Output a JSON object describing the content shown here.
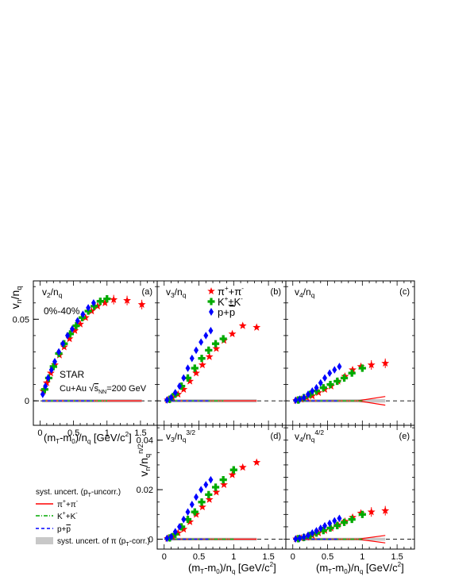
{
  "figure": {
    "y_axis_label_top": "v_n/n_q",
    "y_axis_label_bottom": "v_n/n_q^{n/2}",
    "x_axis_label_top": "(m_T-m_0)/n_q [GeV/c^2]",
    "x_axis_label_bottom": "(m_T-m_0)/n_q [GeV/c^2]",
    "centrality": "0%-40%",
    "experiment": "STAR",
    "system": "Cu+Au √s_NN=200 GeV",
    "legend_particles": [
      "π⁺+π⁻",
      "K⁺+K⁻",
      "p+p̄"
    ],
    "syst_legend": {
      "title": "syst. uncert. (p_T-uncorr.)",
      "pion": "π⁺+π⁻",
      "kaon": "K⁺+K⁻",
      "proton": "p+p̄",
      "band": "syst. uncert. of π (p_T-corr.)"
    },
    "colors": {
      "pion": "#ff0000",
      "kaon": "#00aa00",
      "proton": "#0000ff",
      "band": "#c8c8c8"
    }
  },
  "chart_data": [
    {
      "id": "a",
      "type": "scatter",
      "panel_label": "(a)",
      "title": "v_2/n_q",
      "xlim": [
        -0.1,
        1.75
      ],
      "ylim": [
        -0.015,
        0.0735
      ],
      "yticks": [
        0,
        0.05
      ],
      "ytick_labels": [
        "0",
        "0.05"
      ],
      "xticks": [
        0,
        0.5,
        1,
        1.5
      ],
      "xtick_labels": [
        "0",
        "0.5",
        "1",
        "1.5"
      ],
      "series": [
        {
          "name": "π⁺+π⁻",
          "marker": "star",
          "x": [
            0.05,
            0.1,
            0.16,
            0.22,
            0.29,
            0.36,
            0.44,
            0.52,
            0.6,
            0.68,
            0.77,
            0.86,
            0.97,
            1.1,
            1.3,
            1.52
          ],
          "y": [
            0.006,
            0.011,
            0.017,
            0.022,
            0.028,
            0.033,
            0.038,
            0.043,
            0.047,
            0.051,
            0.055,
            0.058,
            0.06,
            0.062,
            0.0615,
            0.059
          ]
        },
        {
          "name": "K⁺+K⁻",
          "marker": "cross",
          "x": [
            0.07,
            0.13,
            0.2,
            0.28,
            0.36,
            0.45,
            0.54,
            0.63,
            0.72,
            0.81,
            0.9,
            1.0
          ],
          "y": [
            0.007,
            0.014,
            0.021,
            0.029,
            0.035,
            0.041,
            0.046,
            0.051,
            0.055,
            0.058,
            0.061,
            0.0625
          ]
        },
        {
          "name": "p+p̄",
          "marker": "diamond",
          "x": [
            0.04,
            0.08,
            0.12,
            0.17,
            0.22,
            0.28,
            0.34,
            0.41,
            0.48,
            0.56,
            0.64,
            0.72,
            0.8
          ],
          "y": [
            0.004,
            0.009,
            0.014,
            0.019,
            0.024,
            0.03,
            0.035,
            0.04,
            0.044,
            0.049,
            0.053,
            0.057,
            0.06
          ]
        }
      ]
    },
    {
      "id": "b",
      "type": "scatter",
      "panel_label": "(b)",
      "title": "v_3/n_q",
      "xlim": [
        -0.1,
        1.75
      ],
      "ylim": [
        -0.015,
        0.0735
      ],
      "series": [
        {
          "name": "π⁺+π⁻",
          "marker": "star",
          "x": [
            0.05,
            0.12,
            0.2,
            0.28,
            0.37,
            0.46,
            0.55,
            0.65,
            0.75,
            0.86,
            0.98,
            1.13,
            1.33
          ],
          "y": [
            0.0005,
            0.002,
            0.004,
            0.007,
            0.012,
            0.017,
            0.022,
            0.027,
            0.032,
            0.037,
            0.041,
            0.046,
            0.045
          ]
        },
        {
          "name": "K⁺+K⁻",
          "marker": "cross",
          "x": [
            0.08,
            0.16,
            0.25,
            0.34,
            0.44,
            0.54,
            0.64,
            0.74,
            0.85
          ],
          "y": [
            0.001,
            0.004,
            0.009,
            0.014,
            0.02,
            0.026,
            0.031,
            0.035,
            0.038
          ]
        },
        {
          "name": "p+p̄",
          "marker": "diamond",
          "x": [
            0.04,
            0.1,
            0.16,
            0.22,
            0.28,
            0.34,
            0.4,
            0.46,
            0.53,
            0.6,
            0.67
          ],
          "y": [
            0.0005,
            0.002,
            0.005,
            0.009,
            0.014,
            0.02,
            0.026,
            0.031,
            0.036,
            0.04,
            0.043
          ]
        }
      ]
    },
    {
      "id": "c",
      "type": "scatter",
      "panel_label": "(c)",
      "title": "v_4/n_q",
      "xlim": [
        -0.1,
        1.75
      ],
      "ylim": [
        -0.015,
        0.0735
      ],
      "series": [
        {
          "name": "π⁺+π⁻",
          "marker": "star",
          "x": [
            0.05,
            0.12,
            0.2,
            0.28,
            0.37,
            0.46,
            0.55,
            0.65,
            0.75,
            0.86,
            0.98,
            1.13,
            1.33
          ],
          "y": [
            0.0002,
            0.001,
            0.002,
            0.003,
            0.005,
            0.007,
            0.009,
            0.012,
            0.015,
            0.019,
            0.021,
            0.022,
            0.023
          ]
        },
        {
          "name": "K⁺+K⁻",
          "marker": "cross",
          "x": [
            0.08,
            0.16,
            0.25,
            0.34,
            0.44,
            0.54,
            0.64,
            0.74,
            0.85,
            1.0
          ],
          "y": [
            0.0005,
            0.002,
            0.004,
            0.006,
            0.008,
            0.01,
            0.012,
            0.014,
            0.017,
            0.02
          ]
        },
        {
          "name": "p+p̄",
          "marker": "diamond",
          "x": [
            0.04,
            0.1,
            0.16,
            0.22,
            0.28,
            0.34,
            0.4,
            0.46,
            0.53,
            0.6,
            0.67
          ],
          "y": [
            0.0003,
            0.001,
            0.002,
            0.004,
            0.006,
            0.008,
            0.011,
            0.014,
            0.017,
            0.019,
            0.021
          ]
        }
      ]
    },
    {
      "id": "d",
      "type": "scatter",
      "panel_label": "(d)",
      "title": "v_3/n_q^{3/2}",
      "xlim": [
        -0.1,
        1.75
      ],
      "ylim": [
        -0.004,
        0.046
      ],
      "yticks": [
        0,
        0.02,
        0.04
      ],
      "ytick_labels": [
        "0",
        "0.02",
        "0.04"
      ],
      "xticks": [
        0,
        0.5,
        1,
        1.5
      ],
      "xtick_labels": [
        "0",
        "0.5",
        "1",
        "1.5"
      ],
      "series": [
        {
          "name": "π⁺+π⁻",
          "marker": "star",
          "x": [
            0.05,
            0.12,
            0.2,
            0.28,
            0.37,
            0.46,
            0.55,
            0.65,
            0.75,
            0.86,
            0.98,
            1.13,
            1.33
          ],
          "y": [
            0.0003,
            0.001,
            0.0025,
            0.004,
            0.007,
            0.01,
            0.013,
            0.016,
            0.019,
            0.022,
            0.026,
            0.029,
            0.031
          ]
        },
        {
          "name": "K⁺+K⁻",
          "marker": "cross",
          "x": [
            0.08,
            0.16,
            0.25,
            0.34,
            0.44,
            0.54,
            0.64,
            0.74,
            0.85,
            1.0
          ],
          "y": [
            0.0005,
            0.002,
            0.005,
            0.008,
            0.011,
            0.015,
            0.018,
            0.021,
            0.024,
            0.028
          ]
        },
        {
          "name": "p+p̄",
          "marker": "diamond",
          "x": [
            0.04,
            0.1,
            0.16,
            0.22,
            0.28,
            0.34,
            0.4,
            0.46,
            0.53,
            0.6,
            0.67
          ],
          "y": [
            0.0003,
            0.001,
            0.003,
            0.005,
            0.008,
            0.011,
            0.014,
            0.017,
            0.02,
            0.022,
            0.024
          ]
        }
      ]
    },
    {
      "id": "e",
      "type": "scatter",
      "panel_label": "(e)",
      "title": "v_4/n_q^{4/2}",
      "xlim": [
        -0.1,
        1.75
      ],
      "ylim": [
        -0.004,
        0.046
      ],
      "xticks": [
        0,
        0.5,
        1,
        1.5
      ],
      "xtick_labels": [
        "0",
        "0.5",
        "1",
        "1.5"
      ],
      "series": [
        {
          "name": "π⁺+π⁻",
          "marker": "star",
          "x": [
            0.05,
            0.12,
            0.2,
            0.28,
            0.37,
            0.46,
            0.55,
            0.65,
            0.75,
            0.86,
            0.98,
            1.13,
            1.33
          ],
          "y": [
            0.0001,
            0.0004,
            0.0008,
            0.0015,
            0.0025,
            0.0035,
            0.0045,
            0.0058,
            0.0072,
            0.0088,
            0.0105,
            0.011,
            0.0115
          ]
        },
        {
          "name": "K⁺+K⁻",
          "marker": "cross",
          "x": [
            0.08,
            0.16,
            0.25,
            0.34,
            0.44,
            0.54,
            0.64,
            0.74,
            0.85,
            1.0
          ],
          "y": [
            0.0002,
            0.0007,
            0.0015,
            0.0025,
            0.0035,
            0.0045,
            0.0055,
            0.0068,
            0.008,
            0.01
          ]
        },
        {
          "name": "p+p̄",
          "marker": "diamond",
          "x": [
            0.04,
            0.1,
            0.16,
            0.22,
            0.28,
            0.34,
            0.4,
            0.46,
            0.53,
            0.6,
            0.67
          ],
          "y": [
            0.0001,
            0.0004,
            0.0009,
            0.0016,
            0.0025,
            0.0034,
            0.0044,
            0.0054,
            0.0064,
            0.0074,
            0.0084
          ]
        }
      ]
    }
  ]
}
